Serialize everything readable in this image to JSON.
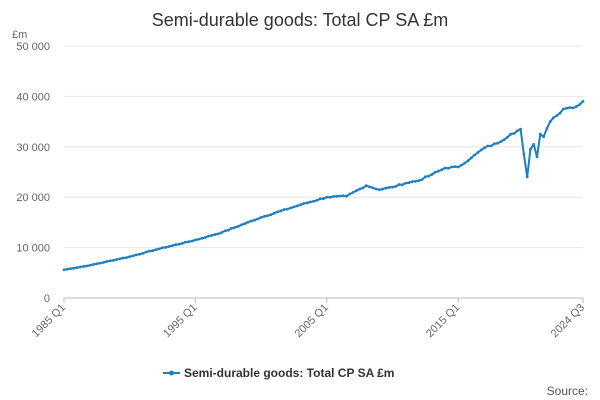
{
  "colors": {
    "series": "#1f7fbf",
    "grid": "#e6e6e6",
    "axis": "#bbbbbb"
  },
  "chart_data": {
    "type": "line",
    "title": "Semi-durable goods: Total CP SA £m",
    "ylabel": "£m",
    "xlabel": "",
    "ylim": [
      0,
      50000
    ],
    "yticks": [
      0,
      10000,
      20000,
      30000,
      40000,
      50000
    ],
    "ytick_labels": [
      "0",
      "10 000",
      "20 000",
      "30 000",
      "40 000",
      "50 000"
    ],
    "xticks": [
      {
        "label": "1985 Q1",
        "t": 1985.0
      },
      {
        "label": "1995 Q1",
        "t": 1995.0
      },
      {
        "label": "2005 Q1",
        "t": 2005.0
      },
      {
        "label": "2015 Q1",
        "t": 2015.0
      },
      {
        "label": "2024 Q3",
        "t": 2024.5
      }
    ],
    "xlim": [
      1985.0,
      2024.5
    ],
    "legend": "bottom-center",
    "source_label": "Source:",
    "series": [
      {
        "name": "Semi-durable goods: Total CP SA £m",
        "anchors": [
          [
            1985.0,
            5600
          ],
          [
            1987.0,
            6500
          ],
          [
            1990.0,
            8200
          ],
          [
            1992.0,
            9600
          ],
          [
            1995.0,
            11500
          ],
          [
            1997.0,
            13000
          ],
          [
            2000.0,
            16000
          ],
          [
            2003.0,
            18500
          ],
          [
            2005.0,
            20000
          ],
          [
            2006.5,
            20200
          ],
          [
            2008.0,
            22300
          ],
          [
            2009.0,
            21500
          ],
          [
            2010.0,
            22000
          ],
          [
            2011.0,
            22800
          ],
          [
            2012.0,
            23300
          ],
          [
            2013.0,
            24500
          ],
          [
            2014.0,
            25800
          ],
          [
            2015.0,
            26000
          ],
          [
            2016.0,
            27800
          ],
          [
            2017.0,
            29800
          ],
          [
            2018.0,
            30700
          ],
          [
            2019.0,
            32500
          ],
          [
            2019.75,
            33500
          ],
          [
            2020.0,
            28500
          ],
          [
            2020.25,
            24000
          ],
          [
            2020.5,
            29500
          ],
          [
            2020.75,
            30500
          ],
          [
            2021.0,
            28000
          ],
          [
            2021.25,
            32500
          ],
          [
            2021.5,
            32000
          ],
          [
            2022.0,
            35000
          ],
          [
            2022.5,
            36200
          ],
          [
            2023.0,
            37500
          ],
          [
            2023.5,
            37800
          ],
          [
            2024.0,
            38000
          ],
          [
            2024.5,
            39000
          ]
        ]
      }
    ]
  }
}
